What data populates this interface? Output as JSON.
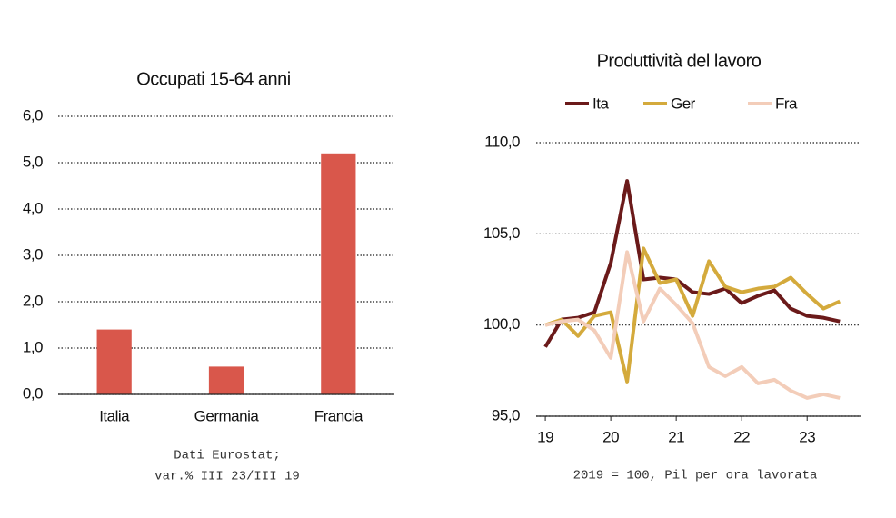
{
  "chart_data": [
    {
      "type": "bar",
      "title": "Occupati 15-64 anni",
      "categories": [
        "Italia",
        "Germania",
        "Francia"
      ],
      "values": [
        1.4,
        0.6,
        5.2
      ],
      "color": "#d9574b",
      "ylim": [
        0,
        6
      ],
      "yticks": [
        {
          "value": 0,
          "label": "0,0"
        },
        {
          "value": 1,
          "label": "1,0"
        },
        {
          "value": 2,
          "label": "2,0"
        },
        {
          "value": 3,
          "label": "3,0"
        },
        {
          "value": 4,
          "label": "4,0"
        },
        {
          "value": 5,
          "label": "5,0"
        },
        {
          "value": 6,
          "label": "6,0"
        }
      ],
      "grid": true,
      "note": [
        "Dati Eurostat;",
        "var.% III 23/III 19"
      ]
    },
    {
      "type": "line",
      "title": "Produttività del lavoro",
      "x": [
        19,
        19.25,
        19.5,
        19.75,
        20,
        20.25,
        20.5,
        20.75,
        21,
        21.25,
        21.5,
        21.75,
        22,
        22.25,
        22.5,
        22.75,
        23,
        23.25,
        23.5
      ],
      "series": [
        {
          "name": "Ita",
          "color": "#6b1a1a",
          "values": [
            98.8,
            100.3,
            100.4,
            100.7,
            103.4,
            107.9,
            102.5,
            102.6,
            102.5,
            101.8,
            101.7,
            102.0,
            101.2,
            101.6,
            101.9,
            100.9,
            100.5,
            100.4,
            100.2
          ]
        },
        {
          "name": "Ger",
          "color": "#d4aa3c",
          "values": [
            100.0,
            100.3,
            99.4,
            100.5,
            100.7,
            96.9,
            104.2,
            102.3,
            102.5,
            100.5,
            103.5,
            102.1,
            101.8,
            102.0,
            102.1,
            102.6,
            101.7,
            100.9,
            101.3
          ]
        },
        {
          "name": "Fra",
          "color": "#f3cdb9",
          "values": [
            100.0,
            100.2,
            100.3,
            99.7,
            98.2,
            104.0,
            100.2,
            102.0,
            101.1,
            100.1,
            97.7,
            97.2,
            97.7,
            96.8,
            97.0,
            96.4,
            96.0,
            96.2,
            96.0
          ]
        }
      ],
      "xlim": [
        18.86,
        23.83
      ],
      "xticks": [
        19,
        20,
        21,
        22,
        23
      ],
      "ylim": [
        95,
        110
      ],
      "yticks": [
        {
          "value": 95,
          "label": "95,0"
        },
        {
          "value": 100,
          "label": "100,0"
        },
        {
          "value": 105,
          "label": "105,0"
        },
        {
          "value": 110,
          "label": "110,0"
        }
      ],
      "grid": true,
      "legend": "top",
      "note": [
        "2019 = 100, Pil per ora lavorata"
      ]
    }
  ]
}
